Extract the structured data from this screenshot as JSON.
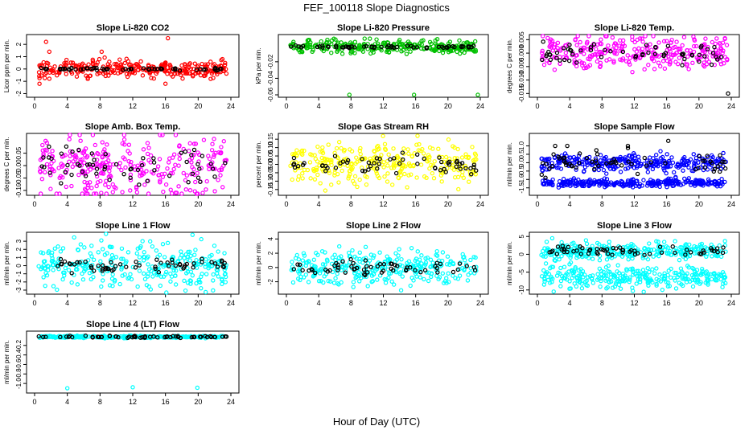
{
  "page": {
    "title": "FEF_100118  Slope Diagnostics",
    "x_label": "Hour of Day (UTC)"
  },
  "colors": {
    "red": "#ff0000",
    "green": "#00c000",
    "magenta": "#ff00ff",
    "yellow": "#ffff00",
    "blue": "#0000ff",
    "cyan": "#00ffff",
    "black": "#000000"
  },
  "chart_data": [
    {
      "type": "scatter",
      "title": "Slope Li-820 CO2",
      "ylabel": "Licor ppm per min.",
      "xlim": [
        0,
        24
      ],
      "ylim": [
        -2.1,
        2.6
      ],
      "xticks": [
        0,
        4,
        8,
        12,
        16,
        20,
        24
      ],
      "yticks": [
        -2,
        -1,
        0,
        1,
        2
      ],
      "ytick_labels": [
        "-2",
        "-1",
        "0",
        "1",
        "2"
      ],
      "series": [
        {
          "color": "red",
          "center": 0.0,
          "spread": 0.35,
          "outliers": [
            [
              1.4,
              2.2
            ],
            [
              1.8,
              1.4
            ],
            [
              0.6,
              -1.2
            ],
            [
              16.3,
              2.5
            ],
            [
              8.2,
              1.4
            ],
            [
              16.0,
              -1.2
            ]
          ]
        },
        {
          "color": "black",
          "center": 0.0,
          "spread": 0.05
        }
      ]
    },
    {
      "type": "scatter",
      "title": "Slope Li-820 Pressure",
      "ylabel": "kPa per min.",
      "xlim": [
        0,
        24
      ],
      "ylim": [
        -0.06,
        0.01
      ],
      "xticks": [
        0,
        4,
        8,
        12,
        16,
        20,
        24
      ],
      "yticks": [
        -0.06,
        -0.04,
        -0.02
      ],
      "ytick_labels": [
        "-0.06",
        "-0.04",
        "-0.02"
      ],
      "series": [
        {
          "color": "green",
          "center": -0.002,
          "spread": 0.004,
          "outliers": [
            [
              7.8,
              -0.06
            ],
            [
              15.8,
              -0.06
            ],
            [
              23.7,
              -0.06
            ]
          ]
        },
        {
          "color": "black",
          "center": -0.002,
          "spread": 0.0007
        }
      ]
    },
    {
      "type": "scatter",
      "title": "Slope Li-820 Temp.",
      "ylabel": "degrees C per min.",
      "xlim": [
        0,
        24
      ],
      "ylim": [
        -0.0155,
        0.006
      ],
      "xticks": [
        0,
        4,
        8,
        12,
        16,
        20,
        24
      ],
      "yticks": [
        -0.015,
        -0.01,
        -0.005,
        0,
        0.005
      ],
      "ytick_labels": [
        "-0.015",
        "-0.010",
        "-0.005",
        "0.000",
        "0.005"
      ],
      "series": [
        {
          "color": "magenta",
          "center": 0.0005,
          "spread": 0.0032,
          "outliers": [
            [
              9.3,
              0.0058
            ]
          ]
        },
        {
          "color": "black",
          "center": -0.0003,
          "spread": 0.002,
          "outliers": [
            [
              23.6,
              -0.015
            ]
          ]
        }
      ]
    },
    {
      "type": "scatter",
      "title": "Slope Amb. Box Temp.",
      "ylabel": "degrees C per min.",
      "xlim": [
        0,
        24
      ],
      "ylim": [
        -0.11,
        0.12
      ],
      "xticks": [
        0,
        4,
        8,
        12,
        16,
        20,
        24
      ],
      "yticks": [
        -0.1,
        -0.05,
        0,
        0.05
      ],
      "ytick_labels": [
        "-0.10",
        "-0.05",
        "0.00",
        "0.05"
      ],
      "series": [
        {
          "color": "magenta",
          "center": 0.0,
          "spread": 0.06
        },
        {
          "color": "black",
          "center": 0.0,
          "spread": 0.04
        }
      ]
    },
    {
      "type": "scatter",
      "title": "Slope Gas Stream RH",
      "ylabel": "percent per min.",
      "xlim": [
        0,
        24
      ],
      "ylim": [
        -0.17,
        0.17
      ],
      "xticks": [
        0,
        4,
        8,
        12,
        16,
        20,
        24
      ],
      "yticks": [
        -0.15,
        -0.1,
        -0.05,
        0,
        0.05,
        0.1,
        0.15
      ],
      "ytick_labels": [
        "-0.15",
        "-0.10",
        "-0.05",
        "0.00",
        "0.05",
        "0.10",
        "0.15"
      ],
      "series": [
        {
          "color": "yellow",
          "center": 0.0,
          "spread": 0.06
        },
        {
          "color": "black",
          "center": 0.0,
          "spread": 0.035
        }
      ]
    },
    {
      "type": "scatter",
      "title": "Slope Sample Flow",
      "ylabel": "ml/min per min.",
      "xlim": [
        0,
        24
      ],
      "ylim": [
        -1.8,
        1.6
      ],
      "xticks": [
        0,
        4,
        8,
        12,
        16,
        20,
        24
      ],
      "yticks": [
        -1.5,
        -1.0,
        -0.5,
        0,
        0.5,
        1.0
      ],
      "ytick_labels": [
        "-1.5",
        "-1.0",
        "-0.5",
        "0.0",
        "0.5",
        "1.0"
      ],
      "series": [
        {
          "color": "blue",
          "center": 0.0,
          "spread": 0.25
        },
        {
          "color": "blue",
          "center": -1.2,
          "spread": 0.12
        },
        {
          "color": "black",
          "center": 0.0,
          "spread": 0.35,
          "outliers": [
            [
              3.7,
              1.0
            ],
            [
              2.2,
              1.0
            ],
            [
              11.2,
              1.0
            ],
            [
              16.2,
              1.3
            ],
            [
              1.0,
              -0.9
            ]
          ]
        }
      ]
    },
    {
      "type": "scatter",
      "title": "Slope Line 1 Flow",
      "ylabel": "ml/min per min.",
      "xlim": [
        0,
        24
      ],
      "ylim": [
        -3.2,
        3.8
      ],
      "xticks": [
        0,
        4,
        8,
        12,
        16,
        20,
        24
      ],
      "yticks": [
        -3,
        -2,
        -1,
        0,
        1,
        2,
        3
      ],
      "ytick_labels": [
        "-3",
        "-2",
        "-1",
        "0",
        "1",
        "2",
        "3"
      ],
      "series": [
        {
          "color": "cyan",
          "center": 0.0,
          "spread": 1.4
        },
        {
          "color": "black",
          "center": 0.0,
          "spread": 0.4
        }
      ]
    },
    {
      "type": "scatter",
      "title": "Slope Line 2 Flow",
      "ylabel": "ml/min per min.",
      "xlim": [
        0,
        24
      ],
      "ylim": [
        -3.4,
        4.6
      ],
      "xticks": [
        0,
        4,
        8,
        12,
        16,
        20,
        24
      ],
      "yticks": [
        -2,
        0,
        2,
        4
      ],
      "ytick_labels": [
        "-2",
        "0",
        "2",
        "4"
      ],
      "series": [
        {
          "color": "cyan",
          "center": 0.0,
          "spread": 1.2
        },
        {
          "color": "black",
          "center": 0.0,
          "spread": 0.5
        }
      ]
    },
    {
      "type": "scatter",
      "title": "Slope Line 3 Flow",
      "ylabel": "ml/min per min.",
      "xlim": [
        0,
        24
      ],
      "ylim": [
        -10.5,
        5.5
      ],
      "xticks": [
        0,
        4,
        8,
        12,
        16,
        20,
        24
      ],
      "yticks": [
        -10,
        -5,
        0,
        5
      ],
      "ytick_labels": [
        "-10",
        "-5",
        "0",
        "5"
      ],
      "series": [
        {
          "color": "cyan",
          "center": 1.0,
          "spread": 1.2
        },
        {
          "color": "cyan",
          "center": -6.5,
          "spread": 1.6
        },
        {
          "color": "black",
          "center": 1.0,
          "spread": 0.7
        }
      ]
    },
    {
      "type": "scatter",
      "title": "Slope Line 4 (LT) Flow",
      "ylabel": "ml/min per min.",
      "xlim": [
        0,
        24
      ],
      "ylim": [
        -1.15,
        0.05
      ],
      "xticks": [
        0,
        4,
        8,
        12,
        16,
        20,
        24
      ],
      "yticks": [
        -1.0,
        -0.8,
        -0.6,
        -0.4,
        -0.2
      ],
      "ytick_labels": [
        "-1.0",
        "-0.8",
        "-0.6",
        "-0.4",
        "-0.2"
      ],
      "series": [
        {
          "color": "cyan",
          "center": -0.02,
          "spread": 0.012,
          "outliers": [
            [
              4.0,
              -1.1
            ],
            [
              12.0,
              -1.08
            ],
            [
              19.9,
              -1.09
            ]
          ]
        },
        {
          "color": "black",
          "center": -0.02,
          "spread": 0.01
        }
      ]
    }
  ]
}
